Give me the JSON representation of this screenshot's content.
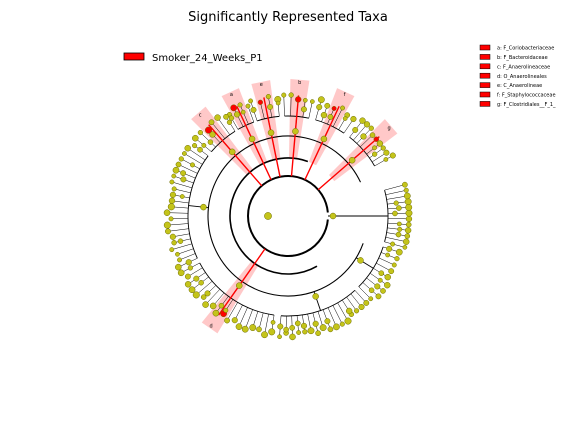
{
  "chart_data": {
    "type": "cladogram",
    "title": "Significantly Represented Taxa",
    "legend": {
      "placement": "top-left",
      "entries": [
        {
          "name": "Smoker_24_Weeks_P1",
          "color": "#ff0000"
        }
      ]
    },
    "clade_key": [
      {
        "letter": "a",
        "taxon": "F_Coriobacteriaceae",
        "label": "a: F_Coriobacteriaceae"
      },
      {
        "letter": "b",
        "taxon": "F_Bacteroidaceae",
        "label": "b: F_Bacteroidaceae"
      },
      {
        "letter": "c",
        "taxon": "F_Anaerolineaceae",
        "label": "c: F_Anaerolineaceae"
      },
      {
        "letter": "d",
        "taxon": "O_Anaerolineales",
        "label": "d: O_Anaerolineales"
      },
      {
        "letter": "e",
        "taxon": "C_Anaerolineae",
        "label": "e: C_Anaerolineae"
      },
      {
        "letter": "f",
        "taxon": "F_Staphylococcaceae",
        "label": "f: F_Staphylococcaceae"
      },
      {
        "letter": "g",
        "taxon": "F_Clostridiales__F_1_",
        "label": "g: F_Clostridiales__F_1_"
      }
    ],
    "highlighted_clades": [
      {
        "letter": "e",
        "group": "Smoker_24_Weeks_P1"
      },
      {
        "letter": "d",
        "group": "Smoker_24_Weeks_P1"
      },
      {
        "letter": "c",
        "group": "Smoker_24_Weeks_P1"
      },
      {
        "letter": "b",
        "group": "Smoker_24_Weeks_P1"
      },
      {
        "letter": "a",
        "group": "Smoker_24_Weeks_P1"
      },
      {
        "letter": "f",
        "group": "Smoker_24_Weeks_P1"
      },
      {
        "letter": "g",
        "group": "Smoker_24_Weeks_P1"
      }
    ],
    "colors": {
      "node_default": "#c4c41a",
      "node_stroke": "#6b6b00",
      "node_highlight": "#ff0000",
      "shade": "#ff9a9a",
      "branch": "#000000"
    }
  }
}
